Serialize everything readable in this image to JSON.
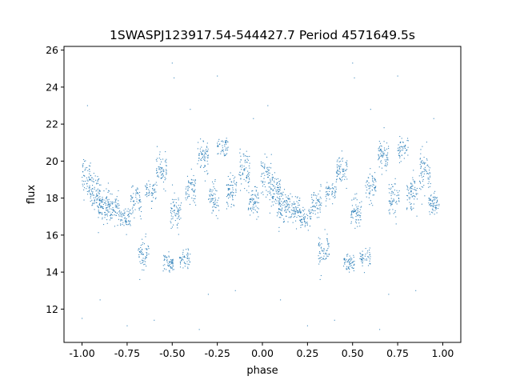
{
  "chart_data": {
    "type": "scatter",
    "title": "1SWASPJ123917.54-544427.7 Period 4571649.5s",
    "xlabel": "phase",
    "ylabel": "flux",
    "xlim": [
      -1.1,
      1.1
    ],
    "ylim": [
      10.2,
      26.2
    ],
    "xticks": [
      "-1.00",
      "-0.75",
      "-0.50",
      "-0.25",
      "0.00",
      "0.25",
      "0.50",
      "0.75",
      "1.00"
    ],
    "yticks": [
      "12",
      "14",
      "16",
      "18",
      "20",
      "22",
      "24",
      "26"
    ],
    "grid": false,
    "marker_color": "#1f77b4",
    "clusters": [
      {
        "phase": -0.98,
        "flux": 19.2,
        "spread": 0.9,
        "count": 60
      },
      {
        "phase": -0.93,
        "flux": 18.3,
        "spread": 0.8,
        "count": 90
      },
      {
        "phase": -0.88,
        "flux": 17.6,
        "spread": 0.7,
        "count": 90
      },
      {
        "phase": -0.82,
        "flux": 17.4,
        "spread": 0.6,
        "count": 70
      },
      {
        "phase": -0.76,
        "flux": 16.9,
        "spread": 0.5,
        "count": 60
      },
      {
        "phase": -0.7,
        "flux": 17.8,
        "spread": 0.6,
        "count": 60
      },
      {
        "phase": -0.66,
        "flux": 15.0,
        "spread": 0.8,
        "count": 60
      },
      {
        "phase": -0.62,
        "flux": 18.3,
        "spread": 0.5,
        "count": 50
      },
      {
        "phase": -0.56,
        "flux": 19.5,
        "spread": 0.7,
        "count": 70
      },
      {
        "phase": -0.52,
        "flux": 14.5,
        "spread": 0.4,
        "count": 60
      },
      {
        "phase": -0.48,
        "flux": 17.2,
        "spread": 0.8,
        "count": 70
      },
      {
        "phase": -0.43,
        "flux": 14.7,
        "spread": 0.4,
        "count": 50
      },
      {
        "phase": -0.4,
        "flux": 18.5,
        "spread": 0.7,
        "count": 60
      },
      {
        "phase": -0.33,
        "flux": 20.3,
        "spread": 0.8,
        "count": 70
      },
      {
        "phase": -0.27,
        "flux": 18.0,
        "spread": 0.7,
        "count": 60
      },
      {
        "phase": -0.22,
        "flux": 20.7,
        "spread": 0.5,
        "count": 50
      },
      {
        "phase": -0.17,
        "flux": 18.3,
        "spread": 0.8,
        "count": 70
      },
      {
        "phase": -0.1,
        "flux": 19.5,
        "spread": 0.9,
        "count": 70
      },
      {
        "phase": -0.05,
        "flux": 17.8,
        "spread": 0.6,
        "count": 70
      },
      {
        "phase": 0.02,
        "flux": 19.2,
        "spread": 0.9,
        "count": 60
      },
      {
        "phase": 0.07,
        "flux": 18.3,
        "spread": 0.8,
        "count": 90
      },
      {
        "phase": 0.12,
        "flux": 17.6,
        "spread": 0.7,
        "count": 90
      },
      {
        "phase": 0.18,
        "flux": 17.4,
        "spread": 0.6,
        "count": 70
      },
      {
        "phase": 0.24,
        "flux": 16.9,
        "spread": 0.5,
        "count": 60
      },
      {
        "phase": 0.3,
        "flux": 17.8,
        "spread": 0.6,
        "count": 60
      },
      {
        "phase": 0.34,
        "flux": 15.0,
        "spread": 0.8,
        "count": 60
      },
      {
        "phase": 0.38,
        "flux": 18.3,
        "spread": 0.5,
        "count": 50
      },
      {
        "phase": 0.44,
        "flux": 19.5,
        "spread": 0.7,
        "count": 70
      },
      {
        "phase": 0.48,
        "flux": 14.5,
        "spread": 0.4,
        "count": 60
      },
      {
        "phase": 0.52,
        "flux": 17.2,
        "spread": 0.8,
        "count": 70
      },
      {
        "phase": 0.57,
        "flux": 14.7,
        "spread": 0.4,
        "count": 50
      },
      {
        "phase": 0.6,
        "flux": 18.5,
        "spread": 0.7,
        "count": 60
      },
      {
        "phase": 0.67,
        "flux": 20.3,
        "spread": 0.8,
        "count": 70
      },
      {
        "phase": 0.73,
        "flux": 18.0,
        "spread": 0.7,
        "count": 60
      },
      {
        "phase": 0.78,
        "flux": 20.7,
        "spread": 0.5,
        "count": 50
      },
      {
        "phase": 0.83,
        "flux": 18.3,
        "spread": 0.8,
        "count": 70
      },
      {
        "phase": 0.9,
        "flux": 19.5,
        "spread": 0.9,
        "count": 70
      },
      {
        "phase": 0.95,
        "flux": 17.8,
        "spread": 0.6,
        "count": 70
      }
    ],
    "outliers": [
      [
        -0.5,
        25.3
      ],
      [
        -0.49,
        24.5
      ],
      [
        0.5,
        25.3
      ],
      [
        0.51,
        24.5
      ],
      [
        -0.97,
        23.0
      ],
      [
        0.03,
        23.0
      ],
      [
        -0.25,
        24.6
      ],
      [
        0.75,
        24.6
      ],
      [
        -0.6,
        11.4
      ],
      [
        0.4,
        11.4
      ],
      [
        -0.9,
        12.5
      ],
      [
        0.1,
        12.5
      ],
      [
        -0.15,
        13.0
      ],
      [
        0.85,
        13.0
      ],
      [
        -1.0,
        11.5
      ],
      [
        -0.4,
        22.8
      ],
      [
        0.6,
        22.8
      ],
      [
        -0.05,
        22.3
      ],
      [
        0.95,
        22.3
      ],
      [
        -0.35,
        10.9
      ],
      [
        0.65,
        10.9
      ],
      [
        -0.75,
        11.1
      ],
      [
        0.25,
        11.1
      ],
      [
        -0.68,
        13.6
      ],
      [
        0.32,
        13.6
      ],
      [
        -0.3,
        12.8
      ],
      [
        0.7,
        12.8
      ]
    ]
  }
}
